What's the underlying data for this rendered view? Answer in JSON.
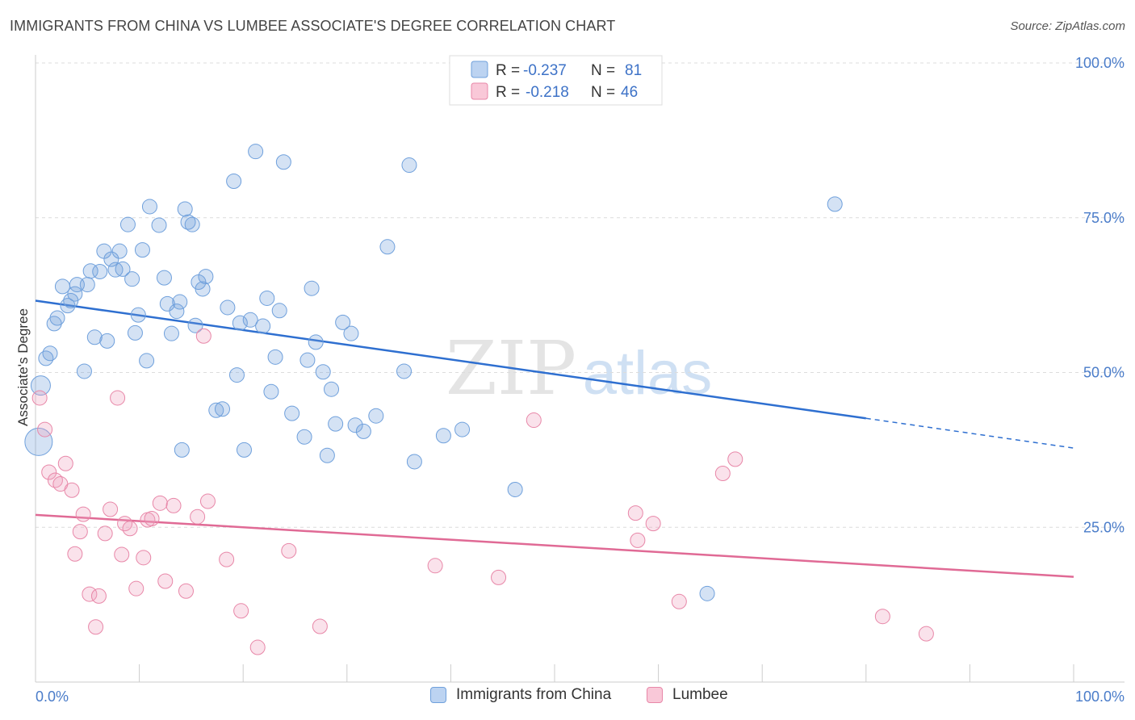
{
  "header": {
    "title": "IMMIGRANTS FROM CHINA VS LUMBEE ASSOCIATE'S DEGREE CORRELATION CHART",
    "source": "Source: ZipAtlas.com"
  },
  "watermark": {
    "zip": "ZIP",
    "atlas": "atlas"
  },
  "legend": {
    "r_label": "R =",
    "n_label": "N =",
    "items": [
      {
        "r": "-0.237",
        "n": "81",
        "color": "#6fa0dc"
      },
      {
        "r": "-0.218",
        "n": "46",
        "color": "#e887a8"
      }
    ]
  },
  "chart_data": {
    "type": "scatter",
    "title": "IMMIGRANTS FROM CHINA VS LUMBEE ASSOCIATE'S DEGREE CORRELATION CHART",
    "ylabel": "Associate's Degree",
    "xlim": [
      0,
      100
    ],
    "ylim": [
      0,
      100
    ],
    "x_tick_labels": [
      "0.0%",
      "100.0%"
    ],
    "y_tick_labels": [
      "25.0%",
      "50.0%",
      "75.0%",
      "100.0%"
    ],
    "y_ticks": [
      25,
      50,
      75,
      100
    ],
    "grid": true,
    "series": [
      {
        "name": "Immigrants from China",
        "color": "#6fa0dc",
        "trend": {
          "x0": 0,
          "y0": 61.6,
          "x1": 80,
          "y1": 42.6,
          "dash_to_x": 100,
          "dash_to_y": 37.8
        },
        "points": [
          [
            0.3,
            38.8
          ],
          [
            0.5,
            47.9
          ],
          [
            1.0,
            52.3
          ],
          [
            1.4,
            53.1
          ],
          [
            1.8,
            57.9
          ],
          [
            2.1,
            58.8
          ],
          [
            2.6,
            63.9
          ],
          [
            3.1,
            60.8
          ],
          [
            3.4,
            61.6
          ],
          [
            3.8,
            62.7
          ],
          [
            4.0,
            64.2
          ],
          [
            4.7,
            50.2
          ],
          [
            5.0,
            64.2
          ],
          [
            5.3,
            66.4
          ],
          [
            5.7,
            55.7
          ],
          [
            6.2,
            66.3
          ],
          [
            6.6,
            69.6
          ],
          [
            6.9,
            55.1
          ],
          [
            7.3,
            68.3
          ],
          [
            7.7,
            66.6
          ],
          [
            8.1,
            69.6
          ],
          [
            8.4,
            66.7
          ],
          [
            8.9,
            73.9
          ],
          [
            9.3,
            65.1
          ],
          [
            9.6,
            56.4
          ],
          [
            9.9,
            59.3
          ],
          [
            10.3,
            69.8
          ],
          [
            10.7,
            51.9
          ],
          [
            11.0,
            76.8
          ],
          [
            11.9,
            73.8
          ],
          [
            12.4,
            65.3
          ],
          [
            12.7,
            61.1
          ],
          [
            13.1,
            56.3
          ],
          [
            13.6,
            59.9
          ],
          [
            13.9,
            61.4
          ],
          [
            14.1,
            37.5
          ],
          [
            14.4,
            76.4
          ],
          [
            14.7,
            74.3
          ],
          [
            15.1,
            73.9
          ],
          [
            15.4,
            57.6
          ],
          [
            15.7,
            64.6
          ],
          [
            16.1,
            63.5
          ],
          [
            16.4,
            65.5
          ],
          [
            17.4,
            43.9
          ],
          [
            18.0,
            44.1
          ],
          [
            18.5,
            60.5
          ],
          [
            19.1,
            80.9
          ],
          [
            19.4,
            49.6
          ],
          [
            19.7,
            58.0
          ],
          [
            20.1,
            37.5
          ],
          [
            20.7,
            58.5
          ],
          [
            21.2,
            85.7
          ],
          [
            21.9,
            57.5
          ],
          [
            22.3,
            62.0
          ],
          [
            22.7,
            46.9
          ],
          [
            23.1,
            52.5
          ],
          [
            23.5,
            60.0
          ],
          [
            23.9,
            84.0
          ],
          [
            24.7,
            43.4
          ],
          [
            25.9,
            39.6
          ],
          [
            26.2,
            52.0
          ],
          [
            26.6,
            63.6
          ],
          [
            27.0,
            54.9
          ],
          [
            27.7,
            50.1
          ],
          [
            28.1,
            36.6
          ],
          [
            28.5,
            47.3
          ],
          [
            28.9,
            41.7
          ],
          [
            29.6,
            58.1
          ],
          [
            30.4,
            56.3
          ],
          [
            30.8,
            41.5
          ],
          [
            31.6,
            40.5
          ],
          [
            32.8,
            43.0
          ],
          [
            33.9,
            70.3
          ],
          [
            35.5,
            50.2
          ],
          [
            36.0,
            83.5
          ],
          [
            36.5,
            35.6
          ],
          [
            39.3,
            39.8
          ],
          [
            41.1,
            40.8
          ],
          [
            46.2,
            31.1
          ],
          [
            64.7,
            14.3
          ],
          [
            77.0,
            77.2
          ]
        ]
      },
      {
        "name": "Lumbee",
        "color": "#e887a8",
        "trend": {
          "x0": 0,
          "y0": 27.0,
          "x1": 100,
          "y1": 17.0
        },
        "points": [
          [
            0.4,
            45.9
          ],
          [
            0.9,
            40.8
          ],
          [
            1.3,
            33.9
          ],
          [
            1.9,
            32.6
          ],
          [
            2.4,
            32.0
          ],
          [
            2.9,
            35.3
          ],
          [
            3.5,
            31.0
          ],
          [
            3.8,
            20.7
          ],
          [
            4.3,
            24.3
          ],
          [
            4.6,
            27.1
          ],
          [
            5.2,
            14.2
          ],
          [
            5.8,
            8.9
          ],
          [
            6.1,
            13.9
          ],
          [
            6.7,
            24.0
          ],
          [
            7.2,
            27.9
          ],
          [
            7.9,
            45.9
          ],
          [
            8.3,
            20.6
          ],
          [
            8.6,
            25.6
          ],
          [
            9.1,
            24.8
          ],
          [
            9.7,
            15.1
          ],
          [
            10.4,
            20.1
          ],
          [
            10.8,
            26.2
          ],
          [
            11.2,
            26.4
          ],
          [
            12.0,
            28.9
          ],
          [
            12.5,
            16.3
          ],
          [
            13.3,
            28.5
          ],
          [
            14.5,
            14.7
          ],
          [
            15.6,
            26.7
          ],
          [
            16.2,
            55.9
          ],
          [
            16.6,
            29.2
          ],
          [
            18.4,
            19.8
          ],
          [
            19.8,
            11.5
          ],
          [
            21.4,
            5.6
          ],
          [
            24.4,
            21.2
          ],
          [
            27.4,
            9.0
          ],
          [
            38.5,
            18.8
          ],
          [
            44.6,
            16.9
          ],
          [
            48.0,
            42.3
          ],
          [
            57.8,
            27.3
          ],
          [
            58.0,
            22.9
          ],
          [
            59.5,
            25.6
          ],
          [
            62.0,
            13.0
          ],
          [
            66.2,
            33.7
          ],
          [
            67.4,
            36.0
          ],
          [
            81.6,
            10.6
          ],
          [
            85.8,
            7.8
          ]
        ]
      }
    ]
  },
  "bottom_legend": [
    "Immigrants from China",
    "Lumbee"
  ]
}
